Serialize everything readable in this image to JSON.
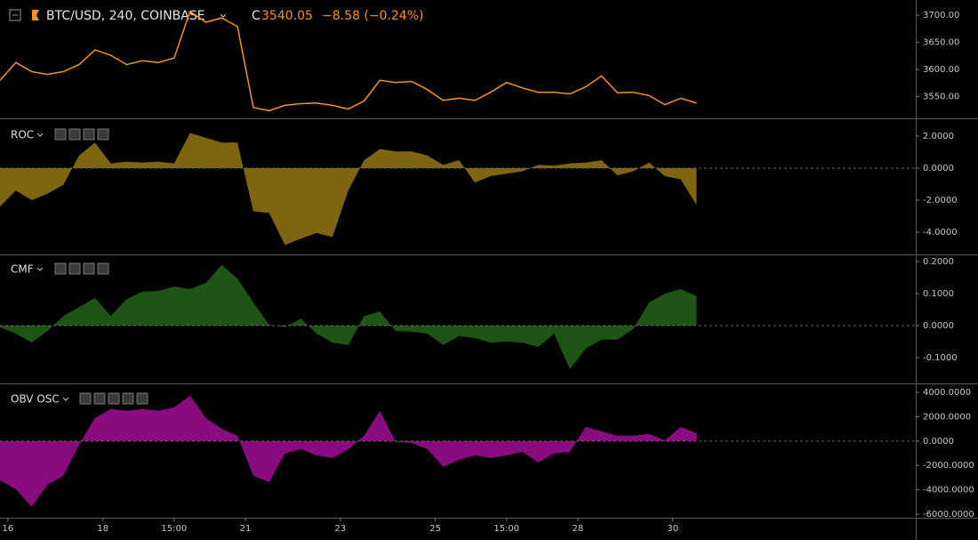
{
  "chart_data": [
    {
      "type": "line",
      "title": "BTC/USD, 240, COINBASE",
      "close_prefix": "C",
      "close": 3540.05,
      "change": "−8.58 (−0.24%)",
      "color": "#f7931a",
      "x": [
        0,
        2,
        4,
        6,
        8,
        10,
        12,
        14,
        16,
        18,
        20,
        22,
        24,
        26,
        28,
        30,
        32,
        34,
        36,
        38,
        40,
        42,
        44,
        46,
        48,
        50,
        52,
        54,
        56,
        58,
        60,
        62,
        64,
        66,
        68,
        70,
        72,
        74,
        76,
        78,
        80,
        82,
        84,
        86,
        88
      ],
      "values": [
        3580,
        3613,
        3596,
        3591,
        3596,
        3609,
        3636,
        3626,
        3609,
        3616,
        3613,
        3621,
        3707,
        3687,
        3695,
        3679,
        3530,
        3524,
        3534,
        3537,
        3538,
        3534,
        3527,
        3542,
        3580,
        3576,
        3578,
        3563,
        3543,
        3547,
        3543,
        3558,
        3576,
        3566,
        3558,
        3558,
        3555,
        3568,
        3588,
        3557,
        3558,
        3552,
        3535,
        3547,
        3538
      ],
      "xlim": [
        0,
        115.7
      ],
      "ylim": [
        3510,
        3728
      ],
      "yticks": [
        {
          "value": 3550,
          "label": "3550.00"
        },
        {
          "value": 3600,
          "label": "3600.00"
        },
        {
          "value": 3650,
          "label": "3650.00"
        },
        {
          "value": 3700,
          "label": "3700.00"
        }
      ]
    },
    {
      "type": "area",
      "title": "ROC",
      "color": "#7f6510",
      "x": [
        0,
        2,
        4,
        6,
        8,
        10,
        12,
        14,
        16,
        18,
        20,
        22,
        24,
        26,
        28,
        30,
        32,
        34,
        36,
        38,
        40,
        42,
        44,
        46,
        48,
        50,
        52,
        54,
        56,
        58,
        60,
        62,
        64,
        66,
        68,
        70,
        72,
        74,
        76,
        78,
        80,
        82,
        84,
        86,
        88
      ],
      "values": [
        -2.4,
        -1.4,
        -2.0,
        -1.6,
        -1.05,
        0.8,
        1.6,
        0.3,
        0.4,
        0.35,
        0.4,
        0.3,
        2.2,
        1.9,
        1.6,
        1.6,
        -2.7,
        -2.8,
        -4.8,
        -4.4,
        -4.05,
        -4.3,
        -1.4,
        0.5,
        1.2,
        1.05,
        1.05,
        0.8,
        0.2,
        0.5,
        -0.9,
        -0.5,
        -0.35,
        -0.2,
        0.2,
        0.15,
        0.3,
        0.35,
        0.5,
        -0.45,
        -0.2,
        0.35,
        -0.5,
        -0.7,
        -2.3
      ],
      "xlim": [
        0,
        115.7
      ],
      "ylim": [
        -5.39,
        3.06
      ],
      "yticks": [
        {
          "value": -4,
          "label": "-4.0000"
        },
        {
          "value": -2,
          "label": "-2.0000"
        },
        {
          "value": 0,
          "label": "0.0000"
        },
        {
          "value": 2,
          "label": "2.0000"
        }
      ]
    },
    {
      "type": "area",
      "title": "CMF",
      "color": "#1d5614",
      "x": [
        0,
        2,
        4,
        6,
        8,
        10,
        12,
        14,
        16,
        18,
        20,
        22,
        24,
        26,
        28,
        30,
        32,
        34,
        36,
        38,
        40,
        42,
        44,
        46,
        48,
        50,
        52,
        54,
        56,
        58,
        60,
        62,
        64,
        66,
        68,
        70,
        72,
        74,
        76,
        78,
        80,
        82,
        84,
        86,
        88
      ],
      "values": [
        -0.005,
        -0.025,
        -0.053,
        -0.017,
        0.03,
        0.058,
        0.086,
        0.03,
        0.083,
        0.106,
        0.108,
        0.122,
        0.114,
        0.133,
        0.189,
        0.147,
        0.072,
        0.003,
        -0.005,
        0.022,
        -0.025,
        -0.053,
        -0.061,
        0.03,
        0.044,
        -0.017,
        -0.019,
        -0.025,
        -0.061,
        -0.033,
        -0.039,
        -0.053,
        -0.05,
        -0.053,
        -0.067,
        -0.025,
        -0.136,
        -0.072,
        -0.044,
        -0.044,
        -0.011,
        0.072,
        0.1,
        0.114,
        0.092
      ],
      "xlim": [
        0,
        115.7
      ],
      "ylim": [
        -0.1806,
        0.2194
      ],
      "yticks": [
        {
          "value": -0.1,
          "label": "-0.1000"
        },
        {
          "value": 0,
          "label": "0.0000"
        },
        {
          "value": 0.1,
          "label": "0.1000"
        },
        {
          "value": 0.2,
          "label": "0.2000"
        }
      ]
    },
    {
      "type": "area",
      "title": "OBV OSC",
      "color": "#8a0a80",
      "x": [
        0,
        2,
        4,
        6,
        8,
        10,
        12,
        14,
        16,
        18,
        20,
        22,
        24,
        26,
        28,
        30,
        32,
        34,
        36,
        38,
        40,
        42,
        44,
        46,
        48,
        50,
        52,
        54,
        56,
        58,
        60,
        62,
        64,
        66,
        68,
        70,
        72,
        74,
        76,
        78,
        80,
        82,
        84,
        86,
        88
      ],
      "values": [
        -3220,
        -3950,
        -5400,
        -3580,
        -2850,
        -290,
        1900,
        2630,
        2490,
        2630,
        2490,
        2780,
        3730,
        1900,
        1020,
        440,
        -2850,
        -3370,
        -1020,
        -660,
        -1170,
        -1390,
        -660,
        440,
        2490,
        -70,
        -150,
        -660,
        -2120,
        -1540,
        -1170,
        -1390,
        -1170,
        -880,
        -1760,
        -1020,
        -880,
        1170,
        800,
        440,
        440,
        590,
        70,
        1170,
        660
      ],
      "xlim": [
        0,
        115.7
      ],
      "ylim": [
        -6290,
        4660
      ],
      "yticks": [
        {
          "value": -6000,
          "label": "-6000.0000"
        },
        {
          "value": -4000,
          "label": "-4000.0000"
        },
        {
          "value": -2000,
          "label": "-2000.0000"
        },
        {
          "value": 0,
          "label": "0.0000"
        },
        {
          "value": 2000,
          "label": "2000.0000"
        },
        {
          "value": 4000,
          "label": "4000.0000"
        }
      ],
      "xticks": [
        {
          "value": 1,
          "label": "16"
        },
        {
          "value": 13,
          "label": "18"
        },
        {
          "value": 22,
          "label": "15:00"
        },
        {
          "value": 31,
          "label": "21"
        },
        {
          "value": 43,
          "label": "23"
        },
        {
          "value": 55,
          "label": "25"
        },
        {
          "value": 64,
          "label": "15:00"
        },
        {
          "value": 73,
          "label": "28"
        },
        {
          "value": 85,
          "label": "30"
        }
      ]
    }
  ]
}
